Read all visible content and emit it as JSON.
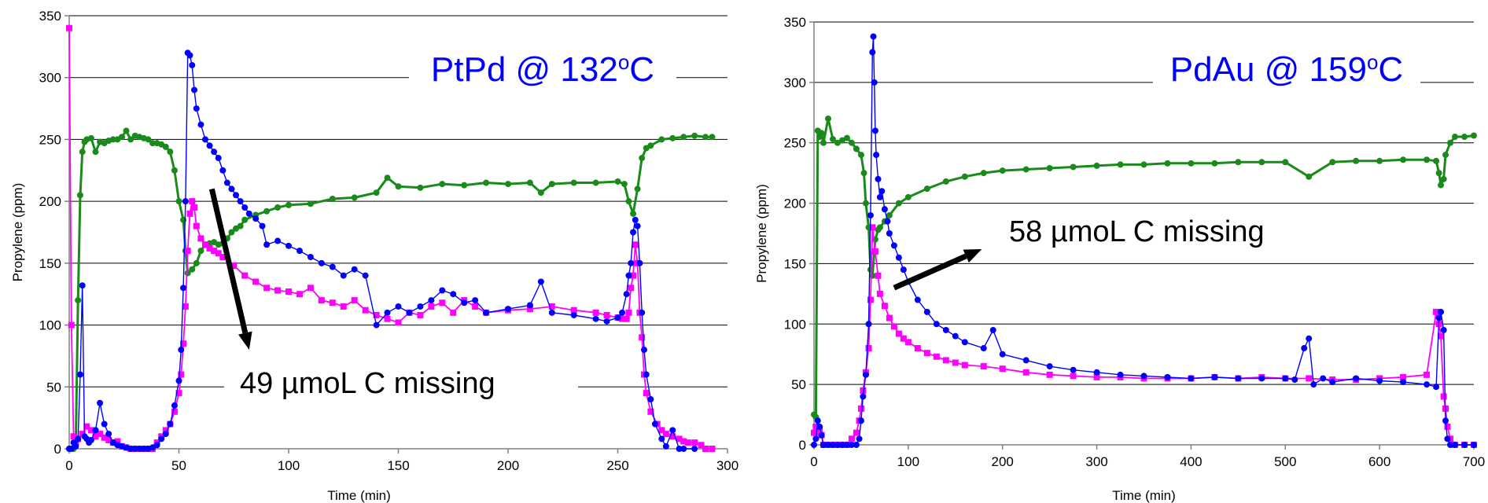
{
  "chart_data": [
    {
      "type": "line",
      "title_main": "PtPd @ 132",
      "title_sup": "o",
      "title_end": "C",
      "annotation": "49 µmoL C missing",
      "xlabel": "Time (min)",
      "ylabel": "Propylene (ppm)",
      "xlim": [
        0,
        300
      ],
      "ylim": [
        0,
        350
      ],
      "xticks": [
        0,
        50,
        100,
        150,
        200,
        250,
        300
      ],
      "yticks": [
        0,
        50,
        100,
        150,
        200,
        250,
        300,
        350
      ],
      "grid": "horizontal",
      "arrow": {
        "from": [
          65,
          210
        ],
        "to": [
          82,
          80
        ]
      },
      "series": [
        {
          "color": "#1a8a1a",
          "marker": "circle",
          "x": [
            0,
            2,
            3,
            4,
            5,
            6,
            7,
            8,
            10,
            12,
            14,
            16,
            18,
            20,
            22,
            24,
            26,
            28,
            30,
            32,
            34,
            36,
            38,
            40,
            42,
            44,
            46,
            48,
            50,
            52,
            53,
            54,
            56,
            58,
            60,
            62,
            64,
            66,
            68,
            70,
            72,
            74,
            76,
            78,
            80,
            85,
            90,
            95,
            100,
            110,
            120,
            130,
            140,
            145,
            150,
            160,
            170,
            180,
            190,
            200,
            210,
            215,
            220,
            230,
            240,
            250,
            253,
            255,
            257,
            259,
            261,
            263,
            265,
            270,
            275,
            280,
            285,
            290,
            293
          ],
          "values": [
            0,
            0,
            5,
            120,
            205,
            240,
            248,
            250,
            251,
            240,
            248,
            247,
            249,
            250,
            250,
            252,
            257,
            250,
            253,
            252,
            251,
            250,
            247,
            247,
            246,
            244,
            240,
            225,
            200,
            185,
            160,
            142,
            145,
            150,
            160,
            165,
            166,
            167,
            165,
            166,
            170,
            175,
            178,
            180,
            185,
            189,
            192,
            195,
            197,
            198,
            202,
            203,
            207,
            219,
            212,
            211,
            214,
            213,
            215,
            214,
            215,
            207,
            214,
            215,
            215,
            216,
            214,
            200,
            190,
            210,
            235,
            243,
            245,
            250,
            251,
            252,
            253,
            252,
            252
          ]
        },
        {
          "color": "#ff00ff",
          "marker": "square",
          "x": [
            0,
            1,
            2,
            3,
            4,
            6,
            8,
            10,
            12,
            14,
            16,
            18,
            20,
            22,
            24,
            26,
            28,
            30,
            32,
            34,
            36,
            38,
            40,
            42,
            44,
            46,
            48,
            50,
            51,
            52,
            53,
            54,
            55,
            56,
            57,
            58,
            60,
            62,
            64,
            66,
            68,
            70,
            75,
            80,
            85,
            90,
            95,
            100,
            105,
            110,
            115,
            120,
            125,
            130,
            135,
            140,
            145,
            150,
            155,
            160,
            165,
            170,
            175,
            180,
            185,
            190,
            200,
            210,
            220,
            230,
            240,
            245,
            250,
            252,
            254,
            255,
            256,
            257,
            258,
            259,
            260,
            261,
            262,
            263,
            265,
            268,
            270,
            272,
            275,
            278,
            280,
            282,
            285,
            288,
            290,
            293
          ],
          "values": [
            340,
            100,
            10,
            5,
            8,
            12,
            18,
            15,
            10,
            12,
            9,
            7,
            5,
            6,
            2,
            1,
            0,
            0,
            0,
            0,
            0,
            0,
            5,
            10,
            15,
            20,
            30,
            45,
            60,
            85,
            115,
            160,
            190,
            200,
            195,
            180,
            170,
            165,
            162,
            160,
            158,
            155,
            148,
            140,
            135,
            130,
            128,
            127,
            125,
            130,
            120,
            118,
            115,
            120,
            112,
            108,
            105,
            102,
            110,
            108,
            115,
            118,
            110,
            120,
            115,
            110,
            112,
            113,
            115,
            112,
            110,
            108,
            106,
            105,
            105,
            110,
            130,
            140,
            165,
            150,
            110,
            90,
            60,
            45,
            30,
            20,
            15,
            12,
            10,
            8,
            6,
            5,
            5,
            3,
            0,
            0
          ]
        },
        {
          "color": "#0000ff",
          "marker": "circle",
          "x": [
            0,
            1,
            2,
            3,
            4,
            5,
            6,
            7,
            8,
            9,
            10,
            12,
            14,
            16,
            18,
            20,
            22,
            24,
            26,
            28,
            30,
            32,
            34,
            36,
            38,
            40,
            42,
            44,
            46,
            48,
            50,
            51,
            52,
            53,
            54,
            55,
            56,
            57,
            58,
            60,
            62,
            64,
            66,
            68,
            70,
            72,
            74,
            76,
            78,
            80,
            82,
            85,
            88,
            90,
            95,
            100,
            105,
            110,
            115,
            120,
            125,
            130,
            135,
            140,
            145,
            150,
            155,
            160,
            165,
            170,
            175,
            180,
            185,
            190,
            200,
            210,
            215,
            220,
            230,
            240,
            245,
            250,
            252,
            254,
            255,
            256,
            257,
            258,
            259,
            260,
            261,
            262,
            263,
            265,
            267,
            270,
            272,
            275,
            278,
            280,
            285
          ],
          "values": [
            0,
            0,
            5,
            2,
            8,
            60,
            132,
            10,
            8,
            5,
            7,
            15,
            37,
            20,
            12,
            5,
            3,
            2,
            1,
            0,
            0,
            0,
            0,
            0,
            1,
            3,
            8,
            12,
            20,
            35,
            55,
            80,
            130,
            200,
            320,
            318,
            310,
            290,
            275,
            262,
            250,
            245,
            240,
            235,
            225,
            215,
            210,
            205,
            200,
            195,
            190,
            186,
            180,
            165,
            168,
            164,
            160,
            155,
            150,
            147,
            140,
            145,
            140,
            100,
            110,
            115,
            110,
            115,
            120,
            128,
            125,
            118,
            120,
            110,
            113,
            116,
            135,
            110,
            108,
            105,
            103,
            106,
            110,
            125,
            140,
            150,
            175,
            185,
            180,
            150,
            110,
            80,
            60,
            40,
            20,
            8,
            2,
            15,
            0,
            0,
            0
          ]
        }
      ]
    },
    {
      "type": "line",
      "title_main": "PdAu @ 159",
      "title_sup": "o",
      "title_end": "C",
      "annotation": "58 µmoL C missing",
      "xlabel": "Time (min)",
      "ylabel": "Propylene (ppm)",
      "xlim": [
        0,
        700
      ],
      "ylim": [
        0,
        350
      ],
      "xticks": [
        0,
        100,
        200,
        300,
        400,
        500,
        600,
        700
      ],
      "yticks": [
        0,
        50,
        100,
        150,
        200,
        250,
        300,
        350
      ],
      "grid": "horizontal",
      "arrow": {
        "from": [
          85,
          130
        ],
        "to": [
          178,
          162
        ]
      },
      "series": [
        {
          "color": "#1a8a1a",
          "marker": "circle",
          "x": [
            0,
            2,
            4,
            6,
            8,
            10,
            15,
            20,
            25,
            30,
            35,
            40,
            45,
            50,
            53,
            55,
            58,
            60,
            62,
            65,
            68,
            70,
            75,
            80,
            90,
            100,
            120,
            140,
            160,
            180,
            200,
            225,
            250,
            275,
            300,
            325,
            350,
            375,
            400,
            425,
            450,
            475,
            500,
            525,
            550,
            575,
            600,
            625,
            650,
            660,
            663,
            665,
            668,
            670,
            675,
            680,
            690,
            700
          ],
          "values": [
            25,
            23,
            260,
            255,
            258,
            250,
            270,
            253,
            250,
            252,
            254,
            250,
            245,
            240,
            225,
            200,
            180,
            145,
            140,
            170,
            178,
            180,
            185,
            190,
            200,
            205,
            212,
            218,
            222,
            225,
            227,
            228,
            229,
            230,
            231,
            232,
            232,
            233,
            233,
            233,
            234,
            234,
            234,
            222,
            234,
            235,
            235,
            236,
            236,
            235,
            225,
            215,
            220,
            240,
            250,
            255,
            255,
            256
          ]
        },
        {
          "color": "#ff00ff",
          "marker": "square",
          "x": [
            0,
            2,
            4,
            6,
            8,
            10,
            15,
            20,
            25,
            30,
            35,
            40,
            45,
            48,
            50,
            52,
            55,
            58,
            60,
            62,
            65,
            68,
            70,
            75,
            80,
            85,
            90,
            95,
            100,
            110,
            120,
            130,
            140,
            150,
            160,
            180,
            200,
            225,
            250,
            275,
            300,
            325,
            350,
            375,
            400,
            425,
            450,
            475,
            500,
            525,
            550,
            575,
            600,
            625,
            650,
            660,
            663,
            665,
            668,
            670,
            672,
            675,
            680,
            690,
            700
          ],
          "values": [
            10,
            15,
            10,
            12,
            8,
            0,
            0,
            0,
            0,
            0,
            0,
            5,
            10,
            20,
            30,
            45,
            60,
            80,
            120,
            180,
            160,
            140,
            125,
            115,
            105,
            98,
            92,
            88,
            85,
            80,
            76,
            73,
            70,
            68,
            66,
            65,
            63,
            60,
            58,
            57,
            56,
            56,
            55,
            55,
            55,
            56,
            55,
            56,
            55,
            55,
            54,
            54,
            55,
            56,
            58,
            110,
            100,
            90,
            40,
            30,
            15,
            5,
            0,
            0,
            0
          ]
        },
        {
          "color": "#0000ff",
          "marker": "circle",
          "x": [
            0,
            2,
            4,
            6,
            8,
            10,
            15,
            20,
            25,
            30,
            35,
            40,
            45,
            48,
            50,
            52,
            55,
            58,
            60,
            62,
            63,
            64,
            65,
            66,
            68,
            70,
            72,
            75,
            78,
            80,
            85,
            90,
            95,
            100,
            110,
            120,
            130,
            140,
            150,
            160,
            180,
            190,
            200,
            225,
            250,
            275,
            300,
            325,
            350,
            375,
            400,
            425,
            450,
            475,
            500,
            510,
            520,
            525,
            530,
            540,
            550,
            575,
            600,
            625,
            650,
            660,
            663,
            665,
            668,
            670,
            672,
            675,
            680,
            690,
            700
          ],
          "values": [
            0,
            5,
            20,
            15,
            8,
            0,
            0,
            0,
            0,
            0,
            0,
            0,
            0,
            5,
            20,
            40,
            58,
            100,
            190,
            325,
            338,
            300,
            260,
            240,
            220,
            205,
            210,
            195,
            185,
            175,
            165,
            155,
            145,
            135,
            120,
            110,
            100,
            95,
            90,
            85,
            80,
            95,
            75,
            70,
            65,
            62,
            60,
            58,
            57,
            56,
            55,
            56,
            55,
            55,
            55,
            54,
            80,
            88,
            50,
            55,
            52,
            55,
            53,
            52,
            50,
            48,
            105,
            110,
            95,
            20,
            5,
            0,
            0,
            0,
            0
          ]
        }
      ]
    }
  ]
}
